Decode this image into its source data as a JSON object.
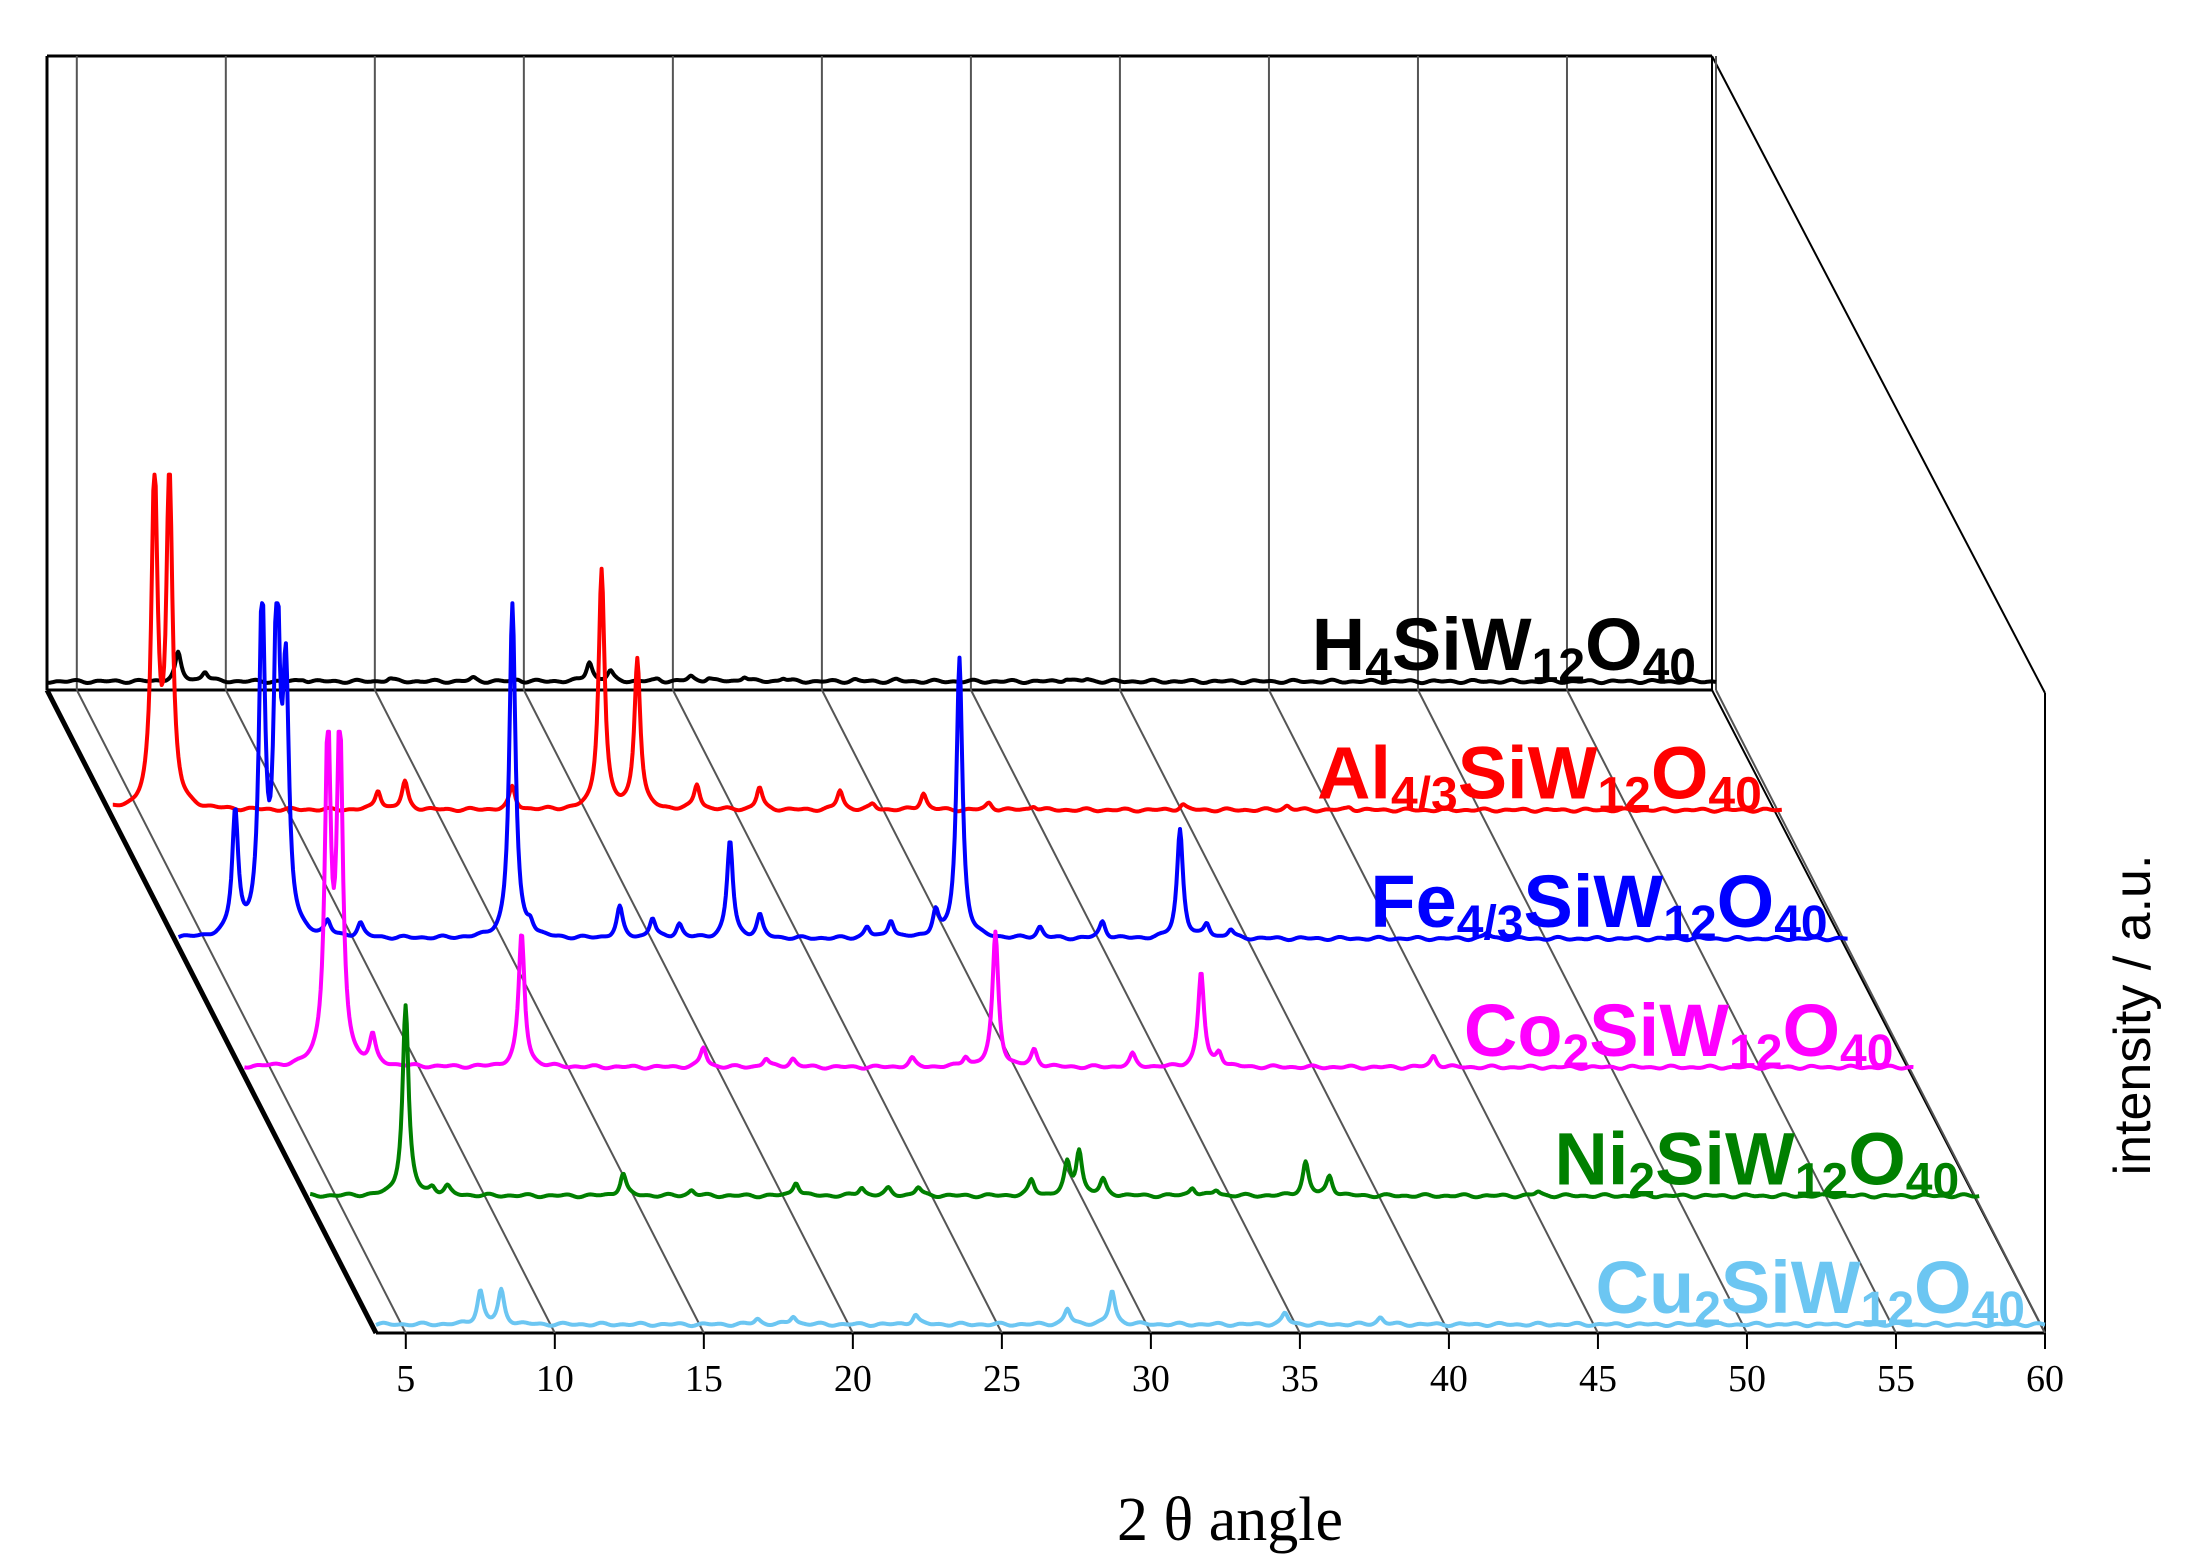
{
  "chart_data": {
    "type": "line",
    "style": "3d-waterfall",
    "title": "",
    "xlabel": "2 θ angle",
    "ylabel": "intensity / a.u.",
    "xlim": [
      4,
      60
    ],
    "xticks": [
      5,
      10,
      15,
      20,
      25,
      30,
      35,
      40,
      45,
      50,
      55,
      60
    ],
    "tick_labels": [
      "5",
      "10",
      "15",
      "20",
      "25",
      "30",
      "35",
      "40",
      "45",
      "50",
      "55",
      "60"
    ],
    "series": [
      {
        "name": "H4SiW12O40",
        "label_parts": [
          {
            "t": "H",
            "sub": false
          },
          {
            "t": "4",
            "sub": true
          },
          {
            "t": "SiW",
            "sub": false
          },
          {
            "t": "12",
            "sub": true
          },
          {
            "t": "O",
            "sub": false
          },
          {
            "t": "40",
            "sub": true
          }
        ],
        "color": "#000000",
        "baseline": 0.02,
        "peaks": [
          [
            8.4,
            1.0
          ],
          [
            9.3,
            0.35
          ],
          [
            12.6,
            0.08
          ],
          [
            15.5,
            0.1
          ],
          [
            18.3,
            0.12
          ],
          [
            19.8,
            0.06
          ],
          [
            22.2,
            0.7
          ],
          [
            22.9,
            0.35
          ],
          [
            24.5,
            0.08
          ],
          [
            25.6,
            0.18
          ],
          [
            26.2,
            0.12
          ],
          [
            27.4,
            0.18
          ],
          [
            28.7,
            0.12
          ],
          [
            31.1,
            0.06
          ],
          [
            32.5,
            0.05
          ],
          [
            38.2,
            0.1
          ],
          [
            38.9,
            0.08
          ]
        ]
      },
      {
        "name": "Al4/3SiW12O40",
        "label_parts": [
          {
            "t": "Al",
            "sub": false
          },
          {
            "t": "4/3",
            "sub": true
          },
          {
            "t": "SiW",
            "sub": false
          },
          {
            "t": "12",
            "sub": true
          },
          {
            "t": "O",
            "sub": false
          },
          {
            "t": "40",
            "sub": true
          }
        ],
        "color": "#ff0000",
        "baseline": 0.02,
        "peaks": [
          [
            5.4,
            12.0
          ],
          [
            5.9,
            12.0
          ],
          [
            12.9,
            0.7
          ],
          [
            13.8,
            1.0
          ],
          [
            17.4,
            0.8
          ],
          [
            20.4,
            8.6
          ],
          [
            21.6,
            5.4
          ],
          [
            23.6,
            0.9
          ],
          [
            25.7,
            0.8
          ],
          [
            28.4,
            0.7
          ],
          [
            29.5,
            0.2
          ],
          [
            31.2,
            0.6
          ],
          [
            33.4,
            0.25
          ],
          [
            34.9,
            0.15
          ],
          [
            39.9,
            0.2
          ],
          [
            43.4,
            0.15
          ],
          [
            45.5,
            0.1
          ]
        ]
      },
      {
        "name": "Fe4/3SiW12O40",
        "label_parts": [
          {
            "t": "Fe",
            "sub": false
          },
          {
            "t": "4/3",
            "sub": true
          },
          {
            "t": "SiW",
            "sub": false
          },
          {
            "t": "12",
            "sub": true
          },
          {
            "t": "O",
            "sub": false
          },
          {
            "t": "40",
            "sub": true
          }
        ],
        "color": "#0000ff",
        "baseline": 0.02,
        "peaks": [
          [
            5.9,
            4.4
          ],
          [
            6.8,
            12.0
          ],
          [
            7.3,
            12.0
          ],
          [
            7.6,
            8.6
          ],
          [
            9.0,
            0.5
          ],
          [
            10.1,
            0.5
          ],
          [
            15.2,
            12.0
          ],
          [
            15.8,
            0.4
          ],
          [
            18.8,
            1.1
          ],
          [
            19.9,
            0.7
          ],
          [
            20.8,
            0.5
          ],
          [
            22.5,
            3.5
          ],
          [
            23.5,
            0.8
          ],
          [
            27.1,
            0.4
          ],
          [
            27.9,
            0.65
          ],
          [
            29.4,
            0.9
          ],
          [
            30.2,
            10.0
          ],
          [
            32.9,
            0.4
          ],
          [
            35.0,
            0.6
          ],
          [
            37.6,
            3.9
          ],
          [
            38.5,
            0.5
          ],
          [
            39.3,
            0.3
          ],
          [
            47.9,
            0.2
          ]
        ]
      },
      {
        "name": "Co2SiW12O40",
        "label_parts": [
          {
            "t": "Co",
            "sub": false
          },
          {
            "t": "2",
            "sub": true
          },
          {
            "t": "SiW",
            "sub": false
          },
          {
            "t": "12",
            "sub": true
          },
          {
            "t": "O",
            "sub": false
          },
          {
            "t": "40",
            "sub": true
          }
        ],
        "color": "#ff00ff",
        "baseline": 0.02,
        "peaks": [
          [
            6.8,
            12.0
          ],
          [
            7.2,
            12.0
          ],
          [
            8.3,
            1.0
          ],
          [
            13.3,
            4.8
          ],
          [
            19.4,
            0.7
          ],
          [
            21.5,
            0.3
          ],
          [
            22.4,
            0.3
          ],
          [
            26.4,
            0.3
          ],
          [
            28.2,
            0.35
          ],
          [
            29.2,
            4.8
          ],
          [
            30.5,
            0.6
          ],
          [
            33.8,
            0.45
          ],
          [
            36.1,
            3.4
          ],
          [
            36.7,
            0.5
          ],
          [
            43.9,
            0.4
          ]
        ]
      },
      {
        "name": "Ni2SiW12O40",
        "label_parts": [
          {
            "t": "Ni",
            "sub": false
          },
          {
            "t": "2",
            "sub": true
          },
          {
            "t": "SiW",
            "sub": false
          },
          {
            "t": "12",
            "sub": true
          },
          {
            "t": "O",
            "sub": false
          },
          {
            "t": "40",
            "sub": true
          }
        ],
        "color": "#008000",
        "baseline": 0.02,
        "peaks": [
          [
            7.2,
            6.8
          ],
          [
            8.1,
            0.25
          ],
          [
            8.6,
            0.3
          ],
          [
            14.5,
            0.8
          ],
          [
            16.8,
            0.2
          ],
          [
            20.3,
            0.5
          ],
          [
            22.5,
            0.3
          ],
          [
            23.4,
            0.25
          ],
          [
            24.4,
            0.3
          ],
          [
            28.2,
            0.55
          ],
          [
            29.4,
            1.1
          ],
          [
            29.8,
            1.6
          ],
          [
            30.6,
            0.55
          ],
          [
            33.6,
            0.3
          ],
          [
            34.4,
            0.2
          ],
          [
            37.4,
            1.2
          ],
          [
            38.2,
            0.7
          ],
          [
            45.2,
            0.15
          ]
        ]
      },
      {
        "name": "Cu2SiW12O40",
        "label_parts": [
          {
            "t": "Cu",
            "sub": false
          },
          {
            "t": "2",
            "sub": true
          },
          {
            "t": "SiW",
            "sub": false
          },
          {
            "t": "12",
            "sub": true
          },
          {
            "t": "O",
            "sub": false
          },
          {
            "t": "40",
            "sub": true
          }
        ],
        "color": "#6cc6f2",
        "baseline": 0.02,
        "peaks": [
          [
            7.5,
            1.2
          ],
          [
            8.2,
            1.2
          ],
          [
            16.8,
            0.2
          ],
          [
            18.0,
            0.3
          ],
          [
            22.1,
            0.35
          ],
          [
            27.2,
            0.55
          ],
          [
            28.7,
            1.2
          ],
          [
            34.5,
            0.4
          ],
          [
            37.7,
            0.25
          ]
        ]
      }
    ]
  }
}
